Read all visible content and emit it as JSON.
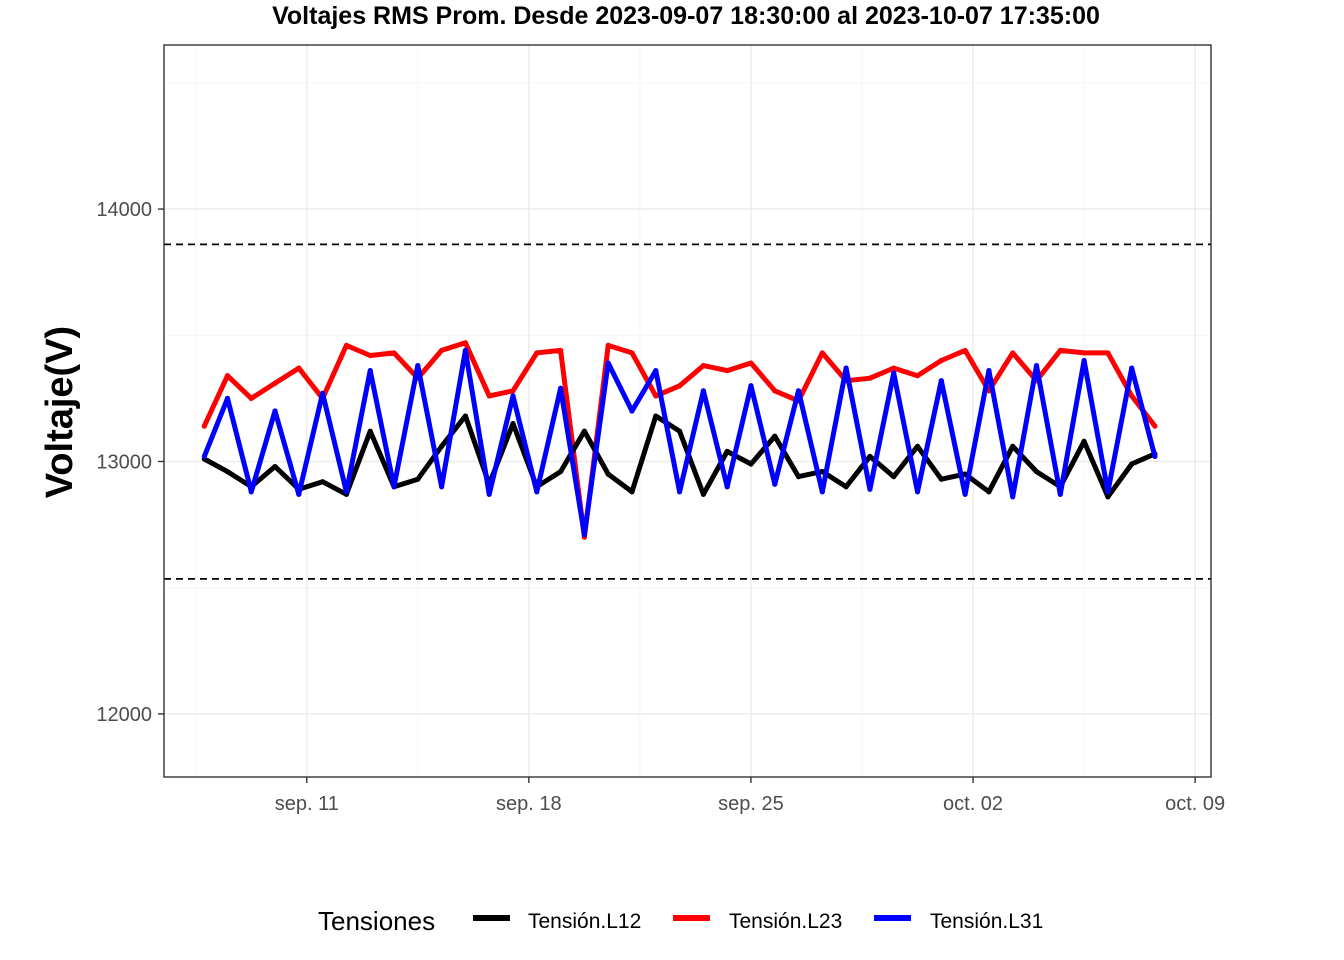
{
  "chart_data": {
    "type": "line",
    "title": "Voltajes RMS Prom. Desde  2023-09-07 18:30:00  al  2023-10-07 17:35:00",
    "xlabel": "",
    "ylabel": "Voltaje(V)",
    "x_start": "2023-09-07 18:30:00",
    "x_end": "2023-10-07 17:35:00",
    "xlim": [
      "2023-09-06T12:00:00",
      "2023-10-09T12:00:00"
    ],
    "ylim": [
      11750,
      14650
    ],
    "x_ticks": [
      {
        "date": "2023-09-11",
        "label": "sep. 11"
      },
      {
        "date": "2023-09-18",
        "label": "sep. 18"
      },
      {
        "date": "2023-09-25",
        "label": "sep. 25"
      },
      {
        "date": "2023-10-02",
        "label": "oct. 02"
      },
      {
        "date": "2023-10-09",
        "label": "oct. 09"
      }
    ],
    "y_ticks": [
      12000,
      13000,
      14000
    ],
    "reference_lines": [
      13860,
      12535
    ],
    "grid": true,
    "legend": {
      "title": "Tensiones",
      "position": "bottom"
    },
    "series": [
      {
        "name": "Tensión.L12",
        "color": "#000000",
        "x": [
          "2023-09-07T18:30",
          "2023-09-08T12:00",
          "2023-09-09T06:00",
          "2023-09-10T00:00",
          "2023-09-10T18:00",
          "2023-09-11T12:00",
          "2023-09-12T06:00",
          "2023-09-13T00:00",
          "2023-09-13T18:00",
          "2023-09-14T12:00",
          "2023-09-15T06:00",
          "2023-09-16T00:00",
          "2023-09-16T18:00",
          "2023-09-17T12:00",
          "2023-09-18T06:00",
          "2023-09-19T00:00",
          "2023-09-19T18:00",
          "2023-09-20T12:00",
          "2023-09-21T06:00",
          "2023-09-22T00:00",
          "2023-09-22T18:00",
          "2023-09-23T12:00",
          "2023-09-24T06:00",
          "2023-09-25T00:00",
          "2023-09-25T18:00",
          "2023-09-26T12:00",
          "2023-09-27T06:00",
          "2023-09-28T00:00",
          "2023-09-28T18:00",
          "2023-09-29T12:00",
          "2023-09-30T06:00",
          "2023-10-01T00:00",
          "2023-10-01T18:00",
          "2023-10-02T12:00",
          "2023-10-03T06:00",
          "2023-10-04T00:00",
          "2023-10-04T18:00",
          "2023-10-05T12:00",
          "2023-10-06T06:00",
          "2023-10-07T00:00",
          "2023-10-07T17:35"
        ],
        "values": [
          13010,
          12960,
          12900,
          12980,
          12890,
          12920,
          12870,
          13120,
          12900,
          12930,
          13060,
          13180,
          12910,
          13150,
          12900,
          12960,
          13120,
          12950,
          12880,
          13180,
          13120,
          12870,
          13040,
          12990,
          13100,
          12940,
          12960,
          12900,
          13020,
          12940,
          13060,
          12930,
          12950,
          12880,
          13060,
          12960,
          12900,
          13080,
          12860,
          12990,
          13030
        ]
      },
      {
        "name": "Tensión.L23",
        "color": "#ff0000",
        "x": [
          "2023-09-07T18:30",
          "2023-09-08T12:00",
          "2023-09-09T06:00",
          "2023-09-10T00:00",
          "2023-09-10T18:00",
          "2023-09-11T12:00",
          "2023-09-12T06:00",
          "2023-09-13T00:00",
          "2023-09-13T18:00",
          "2023-09-14T12:00",
          "2023-09-15T06:00",
          "2023-09-16T00:00",
          "2023-09-16T18:00",
          "2023-09-17T12:00",
          "2023-09-18T06:00",
          "2023-09-19T00:00",
          "2023-09-19T18:00",
          "2023-09-20T12:00",
          "2023-09-21T06:00",
          "2023-09-22T00:00",
          "2023-09-22T18:00",
          "2023-09-23T12:00",
          "2023-09-24T06:00",
          "2023-09-25T00:00",
          "2023-09-25T18:00",
          "2023-09-26T12:00",
          "2023-09-27T06:00",
          "2023-09-28T00:00",
          "2023-09-28T18:00",
          "2023-09-29T12:00",
          "2023-09-30T06:00",
          "2023-10-01T00:00",
          "2023-10-01T18:00",
          "2023-10-02T12:00",
          "2023-10-03T06:00",
          "2023-10-04T00:00",
          "2023-10-04T18:00",
          "2023-10-05T12:00",
          "2023-10-06T06:00",
          "2023-10-07T00:00",
          "2023-10-07T17:35"
        ],
        "values": [
          13140,
          13340,
          13250,
          13310,
          13370,
          13250,
          13460,
          13420,
          13430,
          13330,
          13440,
          13470,
          13260,
          13280,
          13430,
          13440,
          12700,
          13460,
          13430,
          13260,
          13300,
          13380,
          13360,
          13390,
          13280,
          13240,
          13430,
          13320,
          13330,
          13370,
          13340,
          13400,
          13440,
          13280,
          13430,
          13320,
          13440,
          13430,
          13430,
          13260,
          13140
        ]
      },
      {
        "name": "Tensión.L31",
        "color": "#0000ff",
        "x": [
          "2023-09-07T18:30",
          "2023-09-08T12:00",
          "2023-09-09T06:00",
          "2023-09-10T00:00",
          "2023-09-10T18:00",
          "2023-09-11T12:00",
          "2023-09-12T06:00",
          "2023-09-13T00:00",
          "2023-09-13T18:00",
          "2023-09-14T12:00",
          "2023-09-15T06:00",
          "2023-09-16T00:00",
          "2023-09-16T18:00",
          "2023-09-17T12:00",
          "2023-09-18T06:00",
          "2023-09-19T00:00",
          "2023-09-19T18:00",
          "2023-09-20T12:00",
          "2023-09-21T06:00",
          "2023-09-22T00:00",
          "2023-09-22T18:00",
          "2023-09-23T12:00",
          "2023-09-24T06:00",
          "2023-09-25T00:00",
          "2023-09-25T18:00",
          "2023-09-26T12:00",
          "2023-09-27T06:00",
          "2023-09-28T00:00",
          "2023-09-28T18:00",
          "2023-09-29T12:00",
          "2023-09-30T06:00",
          "2023-10-01T00:00",
          "2023-10-01T18:00",
          "2023-10-02T12:00",
          "2023-10-03T06:00",
          "2023-10-04T00:00",
          "2023-10-04T18:00",
          "2023-10-05T12:00",
          "2023-10-06T06:00",
          "2023-10-07T00:00",
          "2023-10-07T17:35"
        ],
        "values": [
          13020,
          13250,
          12880,
          13200,
          12870,
          13270,
          12880,
          13360,
          12900,
          13380,
          12900,
          13440,
          12870,
          13260,
          12880,
          13290,
          12710,
          13390,
          13200,
          13360,
          12880,
          13280,
          12900,
          13300,
          12910,
          13280,
          12880,
          13370,
          12890,
          13350,
          12880,
          13320,
          12870,
          13360,
          12860,
          13380,
          12870,
          13400,
          12880,
          13370,
          13020
        ]
      }
    ]
  }
}
